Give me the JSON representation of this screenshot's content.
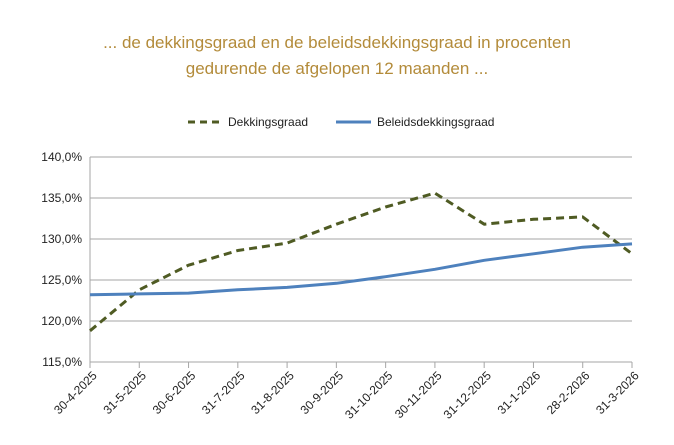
{
  "title_line1": "... de dekkingsgraad en de beleidsdekkingsgraad in procenten",
  "title_line2": "gedurende de afgelopen 12 maanden ...",
  "colors": {
    "title": "#b38b3a",
    "dekkingsgraad": "#4f5b23",
    "beleids": "#4e81bd",
    "grid": "#a6a6a6"
  },
  "chart_data": {
    "type": "line",
    "categories": [
      "30-4-2025",
      "31-5-2025",
      "30-6-2025",
      "31-7-2025",
      "31-8-2025",
      "30-9-2025",
      "31-10-2025",
      "30-11-2025",
      "31-12-2025",
      "31-1-2026",
      "28-2-2026",
      "31-3-2026"
    ],
    "series": [
      {
        "name": "Dekkingsgraad",
        "style": "dashed",
        "color": "#4f5b23",
        "values": [
          118.8,
          123.8,
          126.8,
          128.6,
          129.5,
          131.8,
          133.9,
          135.6,
          131.8,
          132.4,
          132.7,
          128.2
        ]
      },
      {
        "name": "Beleidsdekkingsgraad",
        "style": "solid",
        "color": "#4e81bd",
        "values": [
          123.2,
          123.3,
          123.4,
          123.8,
          124.1,
          124.6,
          125.4,
          126.3,
          127.4,
          128.2,
          129.0,
          129.4
        ]
      }
    ],
    "yticks": [
      "115,0%",
      "120,0%",
      "125,0%",
      "130,0%",
      "135,0%",
      "140,0%"
    ],
    "ylim": [
      115,
      140
    ],
    "grid": true,
    "legend": "top"
  }
}
